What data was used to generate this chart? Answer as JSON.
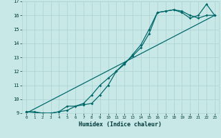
{
  "xlabel": "Humidex (Indice chaleur)",
  "background_color": "#c8e8e8",
  "grid_color": "#b0d4d4",
  "line_color": "#006868",
  "xlim": [
    -0.5,
    23.5
  ],
  "ylim": [
    9,
    17
  ],
  "xticks": [
    0,
    1,
    2,
    3,
    4,
    5,
    6,
    7,
    8,
    9,
    10,
    11,
    12,
    13,
    14,
    15,
    16,
    17,
    18,
    19,
    20,
    21,
    22,
    23
  ],
  "yticks": [
    9,
    10,
    11,
    12,
    13,
    14,
    15,
    16,
    17
  ],
  "series1_x": [
    0,
    1,
    2,
    3,
    4,
    5,
    6,
    7,
    8,
    9,
    10,
    11,
    12,
    13,
    14,
    15,
    16,
    17,
    18,
    19,
    20,
    21,
    22,
    23
  ],
  "series1_y": [
    9.1,
    9.1,
    9.0,
    9.0,
    9.1,
    9.5,
    9.5,
    9.6,
    9.7,
    10.3,
    11.0,
    12.0,
    12.6,
    13.1,
    13.7,
    14.7,
    16.2,
    16.3,
    16.4,
    16.2,
    15.8,
    16.0,
    16.8,
    16.0
  ],
  "series2_x": [
    0,
    2,
    3,
    4,
    5,
    6,
    7,
    8,
    9,
    10,
    11,
    12,
    13,
    14,
    15,
    16,
    17,
    18,
    19,
    20,
    21,
    22,
    23
  ],
  "series2_y": [
    9.1,
    9.0,
    9.0,
    9.1,
    9.2,
    9.5,
    9.7,
    10.3,
    11.0,
    11.5,
    12.0,
    12.5,
    13.2,
    13.9,
    15.0,
    16.2,
    16.3,
    16.4,
    16.3,
    16.0,
    15.8,
    16.0,
    16.0
  ],
  "series3_x": [
    0,
    23
  ],
  "series3_y": [
    9.0,
    16.0
  ]
}
